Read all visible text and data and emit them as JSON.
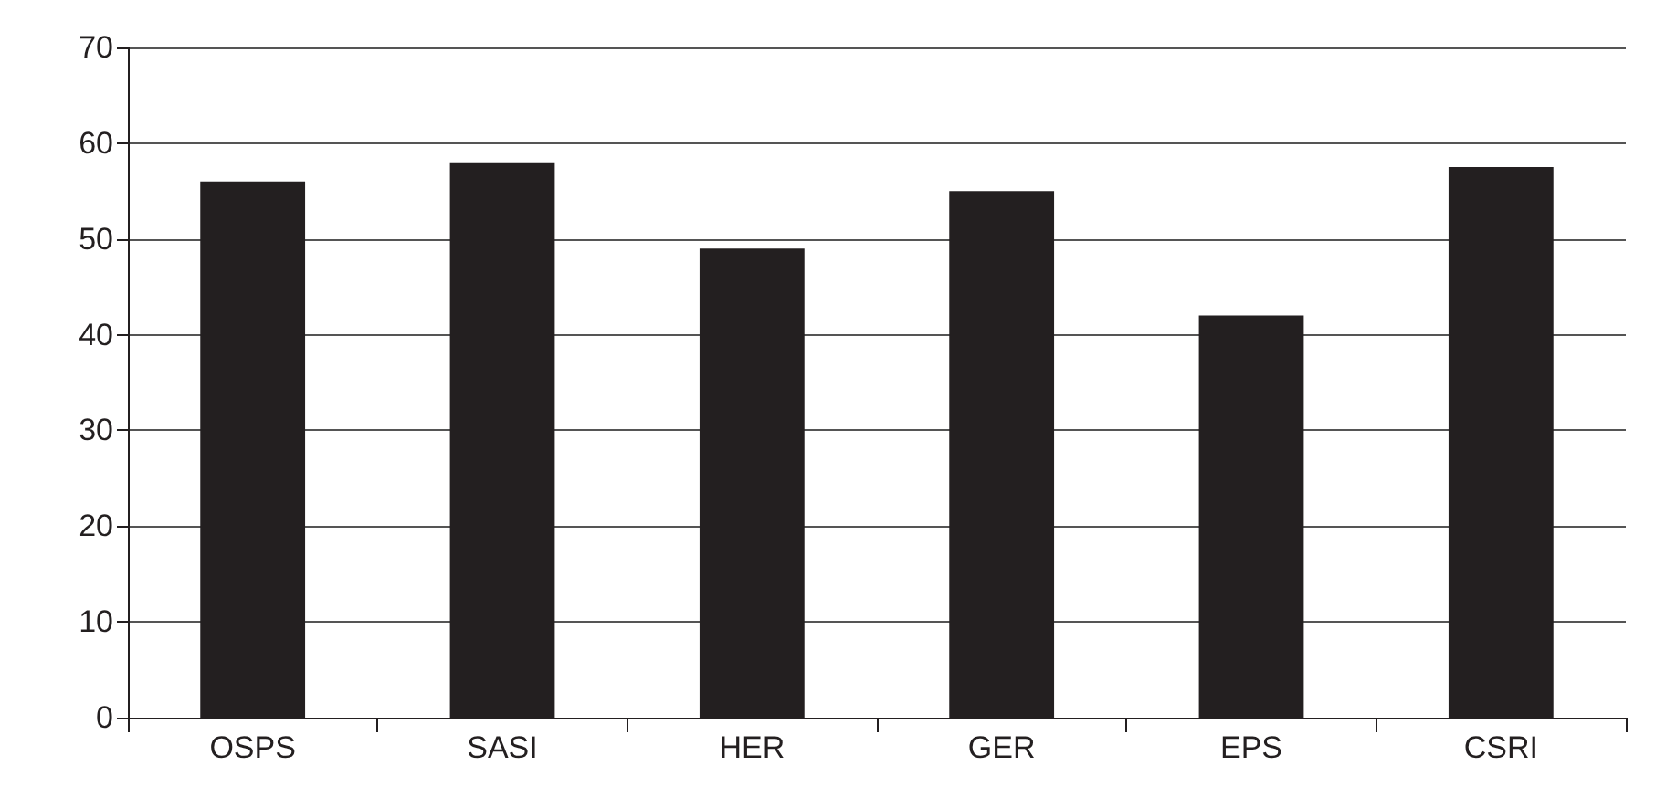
{
  "chart_data": {
    "type": "bar",
    "categories": [
      "OSPS",
      "SASI",
      "HER",
      "GER",
      "EPS",
      "CSRI"
    ],
    "values": [
      56,
      58,
      49,
      55,
      42,
      57.5
    ],
    "color": "#231f20",
    "ylim": [
      0,
      70
    ],
    "yticks": [
      0,
      10,
      20,
      30,
      40,
      50,
      60,
      70
    ],
    "grid": "y"
  }
}
